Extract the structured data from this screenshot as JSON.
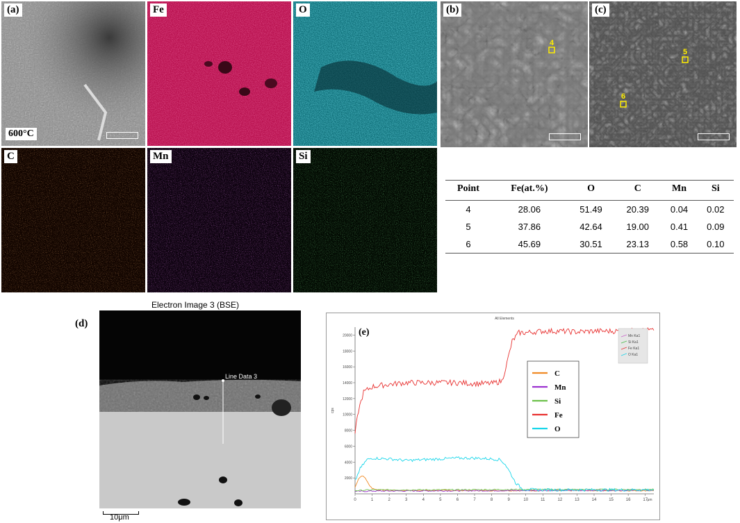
{
  "eds_maps": {
    "a_label": "(a)",
    "temperature": "600°C",
    "fe_label": "Fe",
    "o_label": "O",
    "c_label": "C",
    "mn_label": "Mn",
    "si_label": "Si",
    "colors": {
      "fe": "#d4145a",
      "o": "#1fb9c9",
      "c": "#e8692a",
      "mn": "#b23cc8",
      "si": "#2fbf3a"
    }
  },
  "sem": {
    "b_label": "(b)",
    "c_label": "(c)",
    "point_b": "4",
    "point_c_upper": "5",
    "point_c_lower": "6",
    "marker_color": "#ffee00"
  },
  "composition_table": {
    "headers": [
      "Point",
      "Fe(at.%)",
      "O",
      "C",
      "Mn",
      "Si"
    ],
    "rows": [
      [
        "4",
        "28.06",
        "51.49",
        "20.39",
        "0.04",
        "0.02"
      ],
      [
        "5",
        "37.86",
        "42.64",
        "19.00",
        "0.41",
        "0.09"
      ],
      [
        "6",
        "45.69",
        "30.51",
        "23.13",
        "0.58",
        "0.10"
      ]
    ]
  },
  "bse": {
    "label": "(d)",
    "title": "Electron Image 3 (BSE)",
    "line_label": "Line Data 3",
    "scale": "10μm"
  },
  "chart_data": {
    "type": "line",
    "panel_label": "(e)",
    "title": "All Elements",
    "ylabel": "cps",
    "xlabel": "μm",
    "xlim": [
      0,
      17.5
    ],
    "ylim": [
      0,
      21000
    ],
    "x_ticks": [
      0,
      1,
      2,
      3,
      4,
      5,
      6,
      7,
      8,
      9,
      10,
      11,
      12,
      13,
      14,
      15,
      16,
      17
    ],
    "y_ticks": [
      2000,
      4000,
      6000,
      8000,
      10000,
      12000,
      14000,
      16000,
      18000,
      20000
    ],
    "inset_legend": [
      "Mn Ka1",
      "Si Ka1",
      "Fe Ka1",
      "O Ka1"
    ],
    "series": [
      {
        "name": "C",
        "color": "#f08a24",
        "points": [
          [
            0,
            800
          ],
          [
            0.2,
            1900
          ],
          [
            0.4,
            2300
          ],
          [
            0.6,
            2000
          ],
          [
            0.8,
            1200
          ],
          [
            1.0,
            700
          ],
          [
            1.3,
            500
          ],
          [
            2,
            450
          ],
          [
            5,
            420
          ],
          [
            10,
            400
          ],
          [
            17.5,
            400
          ]
        ]
      },
      {
        "name": "Mn",
        "color": "#9b30d0",
        "points": [
          [
            0,
            300
          ],
          [
            1,
            350
          ],
          [
            5,
            380
          ],
          [
            10,
            420
          ],
          [
            17.5,
            450
          ]
        ]
      },
      {
        "name": "Si",
        "color": "#6cc04a",
        "points": [
          [
            0,
            400
          ],
          [
            1,
            500
          ],
          [
            5,
            500
          ],
          [
            10,
            550
          ],
          [
            17.5,
            550
          ]
        ]
      },
      {
        "name": "Fe",
        "color": "#e8302f",
        "points": [
          [
            0,
            7600
          ],
          [
            0.2,
            10500
          ],
          [
            0.5,
            12800
          ],
          [
            1,
            13500
          ],
          [
            2,
            13800
          ],
          [
            3,
            14000
          ],
          [
            4,
            14000
          ],
          [
            5,
            14000
          ],
          [
            6,
            14000
          ],
          [
            7,
            13900
          ],
          [
            8,
            13900
          ],
          [
            8.6,
            14200
          ],
          [
            8.9,
            16500
          ],
          [
            9.2,
            19200
          ],
          [
            9.6,
            20300
          ],
          [
            10,
            20300
          ],
          [
            11,
            20500
          ],
          [
            12,
            20500
          ],
          [
            13,
            20400
          ],
          [
            14,
            20500
          ],
          [
            15,
            20500
          ],
          [
            16,
            20500
          ],
          [
            17,
            20600
          ],
          [
            17.5,
            20600
          ]
        ]
      },
      {
        "name": "O",
        "color": "#18d6ea",
        "points": [
          [
            0,
            1600
          ],
          [
            0.3,
            3200
          ],
          [
            0.7,
            4300
          ],
          [
            1,
            4500
          ],
          [
            2,
            4400
          ],
          [
            3,
            4200
          ],
          [
            4,
            4300
          ],
          [
            5,
            4400
          ],
          [
            6,
            4500
          ],
          [
            7,
            4500
          ],
          [
            8,
            4400
          ],
          [
            8.5,
            4300
          ],
          [
            8.8,
            3700
          ],
          [
            9.1,
            2600
          ],
          [
            9.4,
            1400
          ],
          [
            9.8,
            600
          ],
          [
            10.5,
            500
          ],
          [
            12,
            500
          ],
          [
            14,
            500
          ],
          [
            17.5,
            500
          ]
        ]
      }
    ]
  }
}
